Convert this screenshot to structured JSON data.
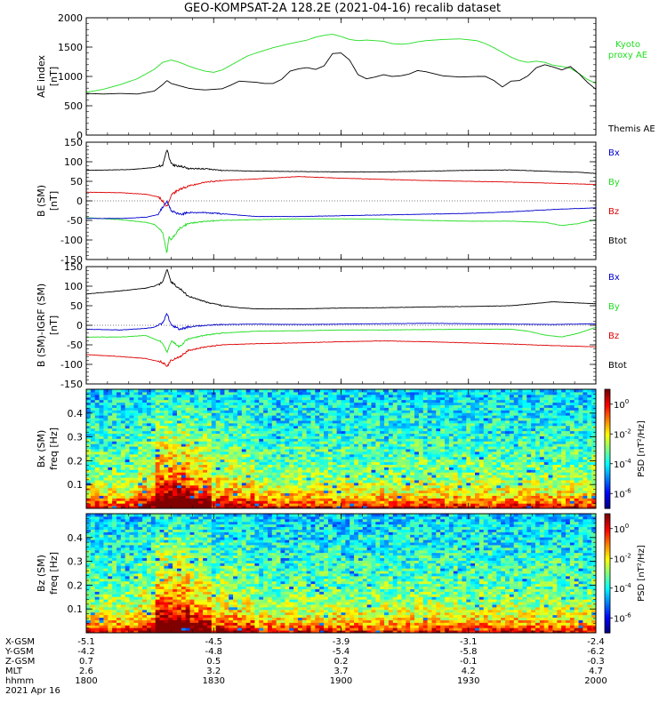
{
  "title": "GEO-KOMPSAT-2A 128.2E (2021-04-16) recalib dataset",
  "colors": {
    "black": "#000000",
    "green": "#22dd22",
    "red": "#dd0000",
    "blue": "#0000cc"
  },
  "x_axis": {
    "range": [
      0,
      120
    ],
    "ticks": [
      0,
      30,
      60,
      90,
      120
    ],
    "rows": [
      {
        "label": "X-GSM",
        "values": [
          "-5.1",
          "-4.5",
          "-3.9",
          "-3.1",
          "-2.4"
        ]
      },
      {
        "label": "Y-GSM",
        "values": [
          "-4.2",
          "-4.8",
          "-5.4",
          "-5.8",
          "-6.2"
        ]
      },
      {
        "label": "Z-GSM",
        "values": [
          "0.7",
          "0.5",
          "0.2",
          "-0.1",
          "-0.3"
        ]
      },
      {
        "label": "MLT",
        "values": [
          "2.6",
          "3.2",
          "3.7",
          "4.2",
          "4.7"
        ]
      },
      {
        "label": "hhmm",
        "values": [
          "1800",
          "1830",
          "1900",
          "1930",
          "2000"
        ]
      }
    ],
    "date": "2021 Apr 16"
  },
  "chart_data": [
    {
      "type": "line",
      "ylabel_line1": "AE index",
      "ylabel_line2": "[nT]",
      "ylim": [
        0,
        2000
      ],
      "yticks": [
        0,
        500,
        1000,
        1500,
        2000
      ],
      "series": [
        {
          "name_lines": [
            "Kyoto",
            "proxy AE"
          ],
          "color": "#22dd22",
          "x": [
            0,
            4,
            8,
            12,
            16,
            18,
            20,
            22,
            24,
            26,
            28,
            30,
            32,
            34,
            36,
            38,
            40,
            44,
            48,
            50,
            52,
            54,
            56,
            58,
            60,
            62,
            64,
            66,
            68,
            70,
            72,
            74,
            76,
            78,
            80,
            84,
            88,
            92,
            94,
            96,
            98,
            100,
            102,
            104,
            106,
            108,
            110,
            112,
            114,
            116,
            118,
            120
          ],
          "y": [
            730,
            780,
            860,
            960,
            1120,
            1240,
            1280,
            1240,
            1180,
            1130,
            1090,
            1070,
            1110,
            1190,
            1270,
            1350,
            1400,
            1490,
            1560,
            1590,
            1620,
            1670,
            1700,
            1720,
            1680,
            1630,
            1610,
            1620,
            1610,
            1600,
            1560,
            1550,
            1560,
            1590,
            1610,
            1630,
            1640,
            1610,
            1560,
            1490,
            1410,
            1330,
            1270,
            1240,
            1260,
            1240,
            1190,
            1170,
            1140,
            1050,
            950,
            880
          ]
        },
        {
          "name_lines": [
            "Themis AE"
          ],
          "color": "#000000",
          "x": [
            0,
            4,
            8,
            12,
            16,
            18,
            19,
            20,
            22,
            24,
            26,
            28,
            30,
            32,
            34,
            36,
            38,
            40,
            42,
            44,
            46,
            48,
            50,
            52,
            54,
            56,
            58,
            60,
            62,
            64,
            66,
            68,
            70,
            72,
            74,
            76,
            78,
            80,
            84,
            88,
            92,
            94,
            96,
            98,
            100,
            102,
            104,
            106,
            108,
            110,
            112,
            114,
            116,
            118,
            120
          ],
          "y": [
            710,
            700,
            710,
            700,
            750,
            860,
            930,
            880,
            840,
            800,
            780,
            770,
            780,
            790,
            850,
            920,
            910,
            900,
            880,
            880,
            950,
            1090,
            1130,
            1150,
            1120,
            1180,
            1390,
            1400,
            1280,
            1030,
            960,
            990,
            1030,
            1000,
            1010,
            1040,
            1100,
            1080,
            1010,
            990,
            1000,
            1000,
            930,
            820,
            920,
            930,
            1010,
            1150,
            1200,
            1160,
            1110,
            1170,
            1050,
            900,
            780
          ]
        }
      ]
    },
    {
      "type": "line",
      "ylabel_line1": "B (SM)",
      "ylabel_line2": "[nT]",
      "ylim": [
        -150,
        150
      ],
      "yticks": [
        -150,
        -100,
        -50,
        0,
        50,
        100,
        150
      ],
      "series": [
        {
          "name": "Btot",
          "color": "#000000",
          "x": [
            0,
            10,
            16,
            18,
            19,
            20,
            21,
            22,
            24,
            28,
            32,
            40,
            50,
            60,
            70,
            80,
            90,
            100,
            110,
            116,
            120
          ],
          "y": [
            78,
            80,
            85,
            92,
            130,
            95,
            90,
            88,
            83,
            82,
            78,
            76,
            75,
            74,
            74,
            76,
            78,
            79,
            75,
            73,
            70
          ]
        },
        {
          "name": "By",
          "color": "#22dd22",
          "x": [
            0,
            8,
            14,
            16,
            18,
            19,
            19.5,
            20,
            22,
            24,
            28,
            32,
            40,
            50,
            60,
            70,
            80,
            90,
            100,
            108,
            112,
            116,
            120
          ],
          "y": [
            -43,
            -48,
            -55,
            -60,
            -80,
            -135,
            -90,
            -100,
            -70,
            -58,
            -52,
            -50,
            -48,
            -46,
            -46,
            -47,
            -50,
            -52,
            -52,
            -55,
            -63,
            -58,
            -48
          ]
        },
        {
          "name": "Bz",
          "color": "#dd0000",
          "x": [
            0,
            8,
            14,
            17,
            18,
            19,
            20,
            22,
            24,
            28,
            32,
            40,
            50,
            60,
            70,
            80,
            90,
            100,
            110,
            120
          ],
          "y": [
            22,
            21,
            17,
            10,
            0,
            -15,
            15,
            30,
            38,
            48,
            52,
            56,
            62,
            58,
            55,
            52,
            50,
            48,
            45,
            42
          ]
        },
        {
          "name": "Bx",
          "color": "#0000cc",
          "x": [
            0,
            8,
            14,
            17,
            18,
            19,
            20,
            22,
            24,
            28,
            32,
            40,
            50,
            60,
            70,
            80,
            90,
            100,
            110,
            120
          ],
          "y": [
            -45,
            -45,
            -42,
            -35,
            -15,
            0,
            -25,
            -35,
            -30,
            -30,
            -33,
            -40,
            -40,
            -38,
            -36,
            -34,
            -32,
            -28,
            -22,
            -18
          ]
        }
      ]
    },
    {
      "type": "line",
      "ylabel_line1": "B (SM)-IGRF (SM)",
      "ylabel_line2": "[nT]",
      "ylim": [
        -150,
        150
      ],
      "yticks": [
        -150,
        -100,
        -50,
        0,
        50,
        100,
        150
      ],
      "series": [
        {
          "name": "Btot",
          "color": "#000000",
          "x": [
            0,
            8,
            14,
            16,
            18,
            19,
            20,
            22,
            24,
            28,
            32,
            36,
            40,
            50,
            60,
            70,
            80,
            90,
            100,
            108,
            110,
            120
          ],
          "y": [
            80,
            88,
            95,
            100,
            110,
            145,
            110,
            95,
            75,
            60,
            50,
            45,
            42,
            42,
            44,
            45,
            47,
            48,
            50,
            58,
            60,
            55
          ]
        },
        {
          "name": "By",
          "color": "#22dd22",
          "x": [
            0,
            8,
            14,
            16,
            18,
            19,
            20,
            22,
            24,
            28,
            32,
            40,
            50,
            60,
            70,
            80,
            90,
            100,
            104,
            108,
            112,
            116,
            120
          ],
          "y": [
            -30,
            -30,
            -26,
            -35,
            -45,
            -70,
            -40,
            -55,
            -35,
            -25,
            -20,
            -15,
            -14,
            -12,
            -12,
            -11,
            -10,
            -10,
            -15,
            -25,
            -30,
            -20,
            -5
          ]
        },
        {
          "name": "Bz",
          "color": "#dd0000",
          "x": [
            0,
            8,
            14,
            16,
            18,
            19,
            20,
            22,
            24,
            28,
            32,
            40,
            50,
            60,
            70,
            80,
            90,
            100,
            110,
            120
          ],
          "y": [
            -75,
            -80,
            -85,
            -90,
            -95,
            -105,
            -90,
            -80,
            -65,
            -55,
            -50,
            -47,
            -45,
            -42,
            -40,
            -42,
            -45,
            -48,
            -52,
            -55
          ]
        },
        {
          "name": "Bx",
          "color": "#0000cc",
          "x": [
            0,
            8,
            14,
            16,
            18,
            19,
            20,
            22,
            24,
            28,
            32,
            40,
            50,
            60,
            70,
            80,
            90,
            100,
            110,
            120
          ],
          "y": [
            -10,
            -12,
            -8,
            -5,
            5,
            30,
            0,
            -10,
            -5,
            0,
            2,
            3,
            2,
            3,
            4,
            5,
            4,
            3,
            2,
            4
          ]
        }
      ]
    },
    {
      "type": "heatmap",
      "ylabel_line1": "Bx (SM)",
      "ylabel_line2": "freq [Hz]",
      "ylim": [
        0,
        0.5
      ],
      "yticks": [
        0.1,
        0.2,
        0.3,
        0.4
      ],
      "colorbar": {
        "label": "PSD [nT²/Hz]",
        "tick_exponents": [
          0,
          -2,
          -4,
          -6
        ]
      }
    },
    {
      "type": "heatmap",
      "ylabel_line1": "Bz (SM)",
      "ylabel_line2": "freq [Hz]",
      "ylim": [
        0,
        0.5
      ],
      "yticks": [
        0.1,
        0.2,
        0.3,
        0.4
      ],
      "colorbar": {
        "label": "PSD [nT²/Hz]",
        "tick_exponents": [
          0,
          -2,
          -4,
          -6
        ]
      }
    }
  ]
}
